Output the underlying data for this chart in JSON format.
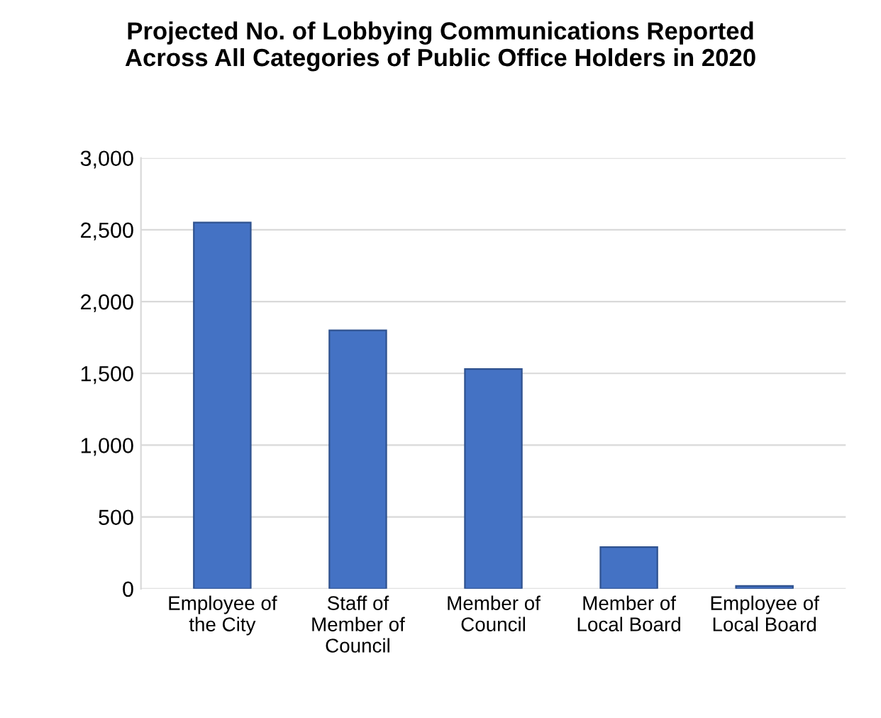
{
  "chart_data": {
    "type": "bar",
    "title": "Projected No. of Lobbying Communications Reported\nAcross All Categories of Public Office Holders in 2020",
    "categories": [
      "Employee of\nthe City",
      "Staff of\nMember of\nCouncil",
      "Member of\nCouncil",
      "Member of\nLocal Board",
      "Employee of\nLocal Board"
    ],
    "values": [
      2550,
      1800,
      1530,
      290,
      20
    ],
    "color": "#4472c4",
    "ylim": [
      0,
      3000
    ],
    "yticks": [
      {
        "value": 0,
        "label": "0"
      },
      {
        "value": 500,
        "label": "500"
      },
      {
        "value": 1000,
        "label": "1,000"
      },
      {
        "value": 1500,
        "label": "1,500"
      },
      {
        "value": 2000,
        "label": "2,000"
      },
      {
        "value": 2500,
        "label": "2,500"
      },
      {
        "value": 3000,
        "label": "3,000"
      }
    ],
    "grid": "y"
  }
}
